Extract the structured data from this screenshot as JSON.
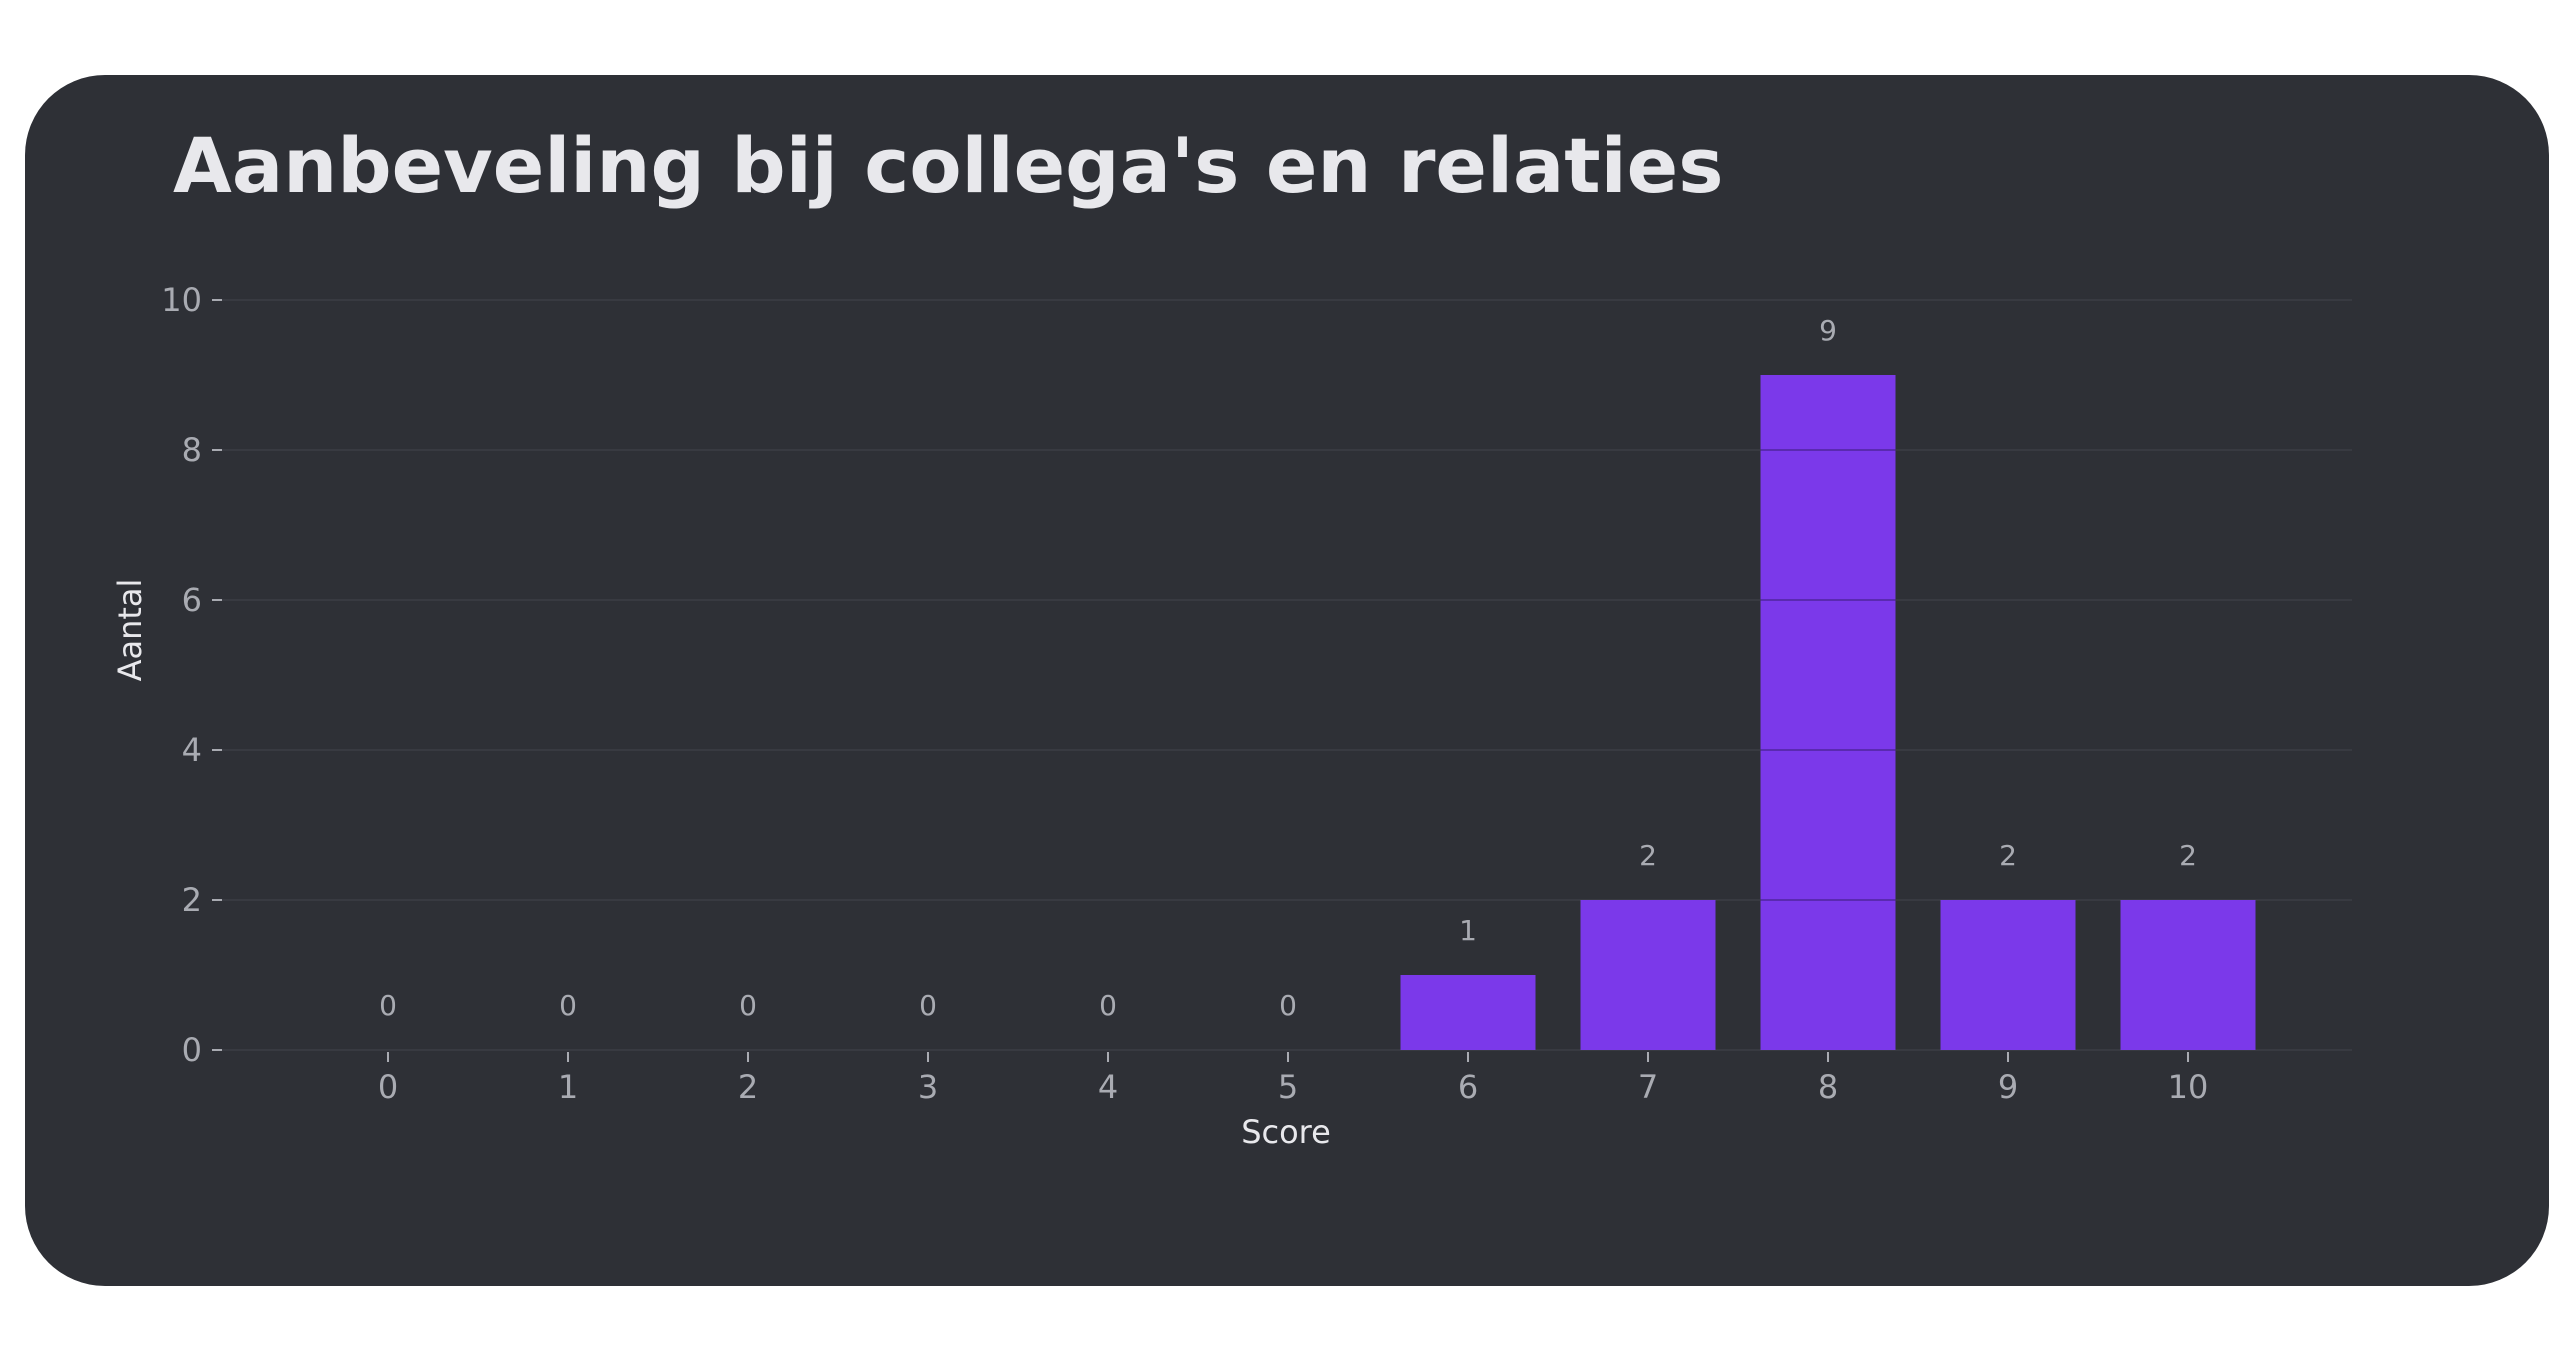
{
  "colors": {
    "background": "#2e3036",
    "bar": "#7b39ea",
    "text": "#e8e8ec",
    "muted_text": "#a9abb2",
    "grid": "#383a41"
  },
  "chart_data": {
    "type": "bar",
    "title": "Aanbeveling bij collega's en relaties",
    "xlabel": "Score",
    "ylabel": "Aantal",
    "categories": [
      "0",
      "1",
      "2",
      "3",
      "4",
      "5",
      "6",
      "7",
      "8",
      "9",
      "10"
    ],
    "values": [
      0,
      0,
      0,
      0,
      0,
      0,
      1,
      2,
      9,
      2,
      2
    ],
    "ylim": [
      0,
      10
    ],
    "yticks": [
      0,
      2,
      4,
      6,
      8,
      10
    ],
    "grid": true,
    "data_labels": true
  }
}
